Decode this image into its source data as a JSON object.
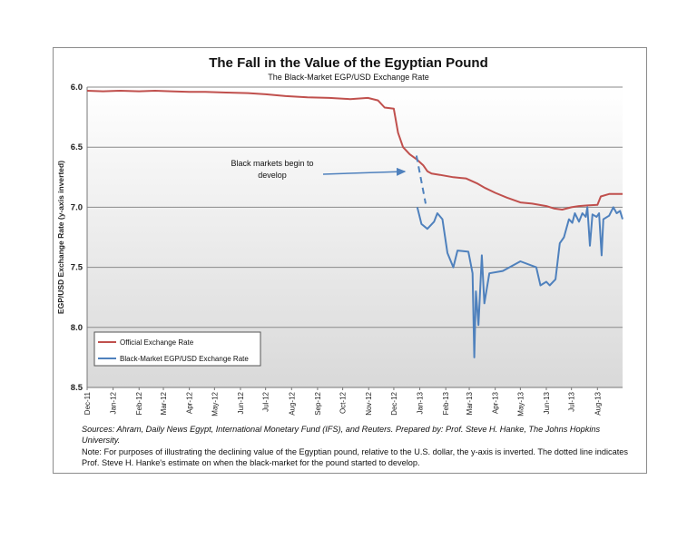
{
  "chart_data": {
    "type": "line",
    "title": "The Fall in the Value of the Egyptian Pound",
    "subtitle": "The Black-Market EGP/USD Exchange Rate",
    "ylabel": "EGP/USD Exchange Rate (y-axis inverted)",
    "xlabel": "",
    "ylim": [
      6.0,
      8.5
    ],
    "y_inverted": true,
    "y_ticks": [
      "6.0",
      "6.5",
      "7.0",
      "7.5",
      "8.0",
      "8.5"
    ],
    "x_ticks": [
      "Dec-11",
      "Jan-12",
      "Feb-12",
      "Mar-12",
      "Apr-12",
      "May-12",
      "Jun-12",
      "Jul-12",
      "Aug-12",
      "Sep-12",
      "Oct-12",
      "Nov-12",
      "Dec-12",
      "Jan-13",
      "Feb-13",
      "Mar-13",
      "Apr-13",
      "May-13",
      "Jun-13",
      "Jul-13",
      "Aug-13"
    ],
    "xlim": [
      "2011-12-01",
      "2013-08-31"
    ],
    "grid": "horizontal",
    "legend_position": "bottom-left",
    "series": [
      {
        "name": "Official Exchange Rate",
        "color": "#c0504d",
        "points": [
          [
            "2011-12-01",
            6.03
          ],
          [
            "2011-12-20",
            6.035
          ],
          [
            "2012-01-10",
            6.03
          ],
          [
            "2012-02-01",
            6.035
          ],
          [
            "2012-02-20",
            6.03
          ],
          [
            "2012-03-10",
            6.035
          ],
          [
            "2012-04-01",
            6.04
          ],
          [
            "2012-04-20",
            6.04
          ],
          [
            "2012-05-15",
            6.045
          ],
          [
            "2012-06-10",
            6.05
          ],
          [
            "2012-07-01",
            6.06
          ],
          [
            "2012-07-25",
            6.075
          ],
          [
            "2012-08-20",
            6.085
          ],
          [
            "2012-09-15",
            6.09
          ],
          [
            "2012-10-10",
            6.1
          ],
          [
            "2012-10-31",
            6.09
          ],
          [
            "2012-11-12",
            6.11
          ],
          [
            "2012-11-20",
            6.17
          ],
          [
            "2012-12-01",
            6.18
          ],
          [
            "2012-12-06",
            6.38
          ],
          [
            "2012-12-12",
            6.5
          ],
          [
            "2012-12-20",
            6.56
          ],
          [
            "2012-12-28",
            6.6
          ],
          [
            "2013-01-05",
            6.65
          ],
          [
            "2013-01-10",
            6.7
          ],
          [
            "2013-01-15",
            6.72
          ],
          [
            "2013-01-25",
            6.73
          ],
          [
            "2013-02-10",
            6.75
          ],
          [
            "2013-02-25",
            6.76
          ],
          [
            "2013-03-10",
            6.8
          ],
          [
            "2013-03-20",
            6.84
          ],
          [
            "2013-04-01",
            6.88
          ],
          [
            "2013-04-15",
            6.92
          ],
          [
            "2013-05-01",
            6.96
          ],
          [
            "2013-05-15",
            6.97
          ],
          [
            "2013-06-01",
            6.99
          ],
          [
            "2013-06-10",
            7.01
          ],
          [
            "2013-06-20",
            7.02
          ],
          [
            "2013-07-01",
            7.0
          ],
          [
            "2013-07-10",
            6.99
          ],
          [
            "2013-07-20",
            6.985
          ],
          [
            "2013-08-01",
            6.98
          ],
          [
            "2013-08-05",
            6.91
          ],
          [
            "2013-08-15",
            6.89
          ],
          [
            "2013-08-31",
            6.89
          ]
        ]
      },
      {
        "name": "Black-Market EGP/USD Exchange Rate",
        "color": "#4f81bd",
        "points": [
          [
            "2012-12-29",
            7.0
          ],
          [
            "2013-01-03",
            7.14
          ],
          [
            "2013-01-10",
            7.18
          ],
          [
            "2013-01-18",
            7.12
          ],
          [
            "2013-01-22",
            7.05
          ],
          [
            "2013-01-28",
            7.1
          ],
          [
            "2013-02-03",
            7.38
          ],
          [
            "2013-02-10",
            7.5
          ],
          [
            "2013-02-15",
            7.36
          ],
          [
            "2013-02-28",
            7.37
          ],
          [
            "2013-03-05",
            7.55
          ],
          [
            "2013-03-07",
            8.25
          ],
          [
            "2013-03-09",
            7.7
          ],
          [
            "2013-03-12",
            7.98
          ],
          [
            "2013-03-16",
            7.4
          ],
          [
            "2013-03-19",
            7.8
          ],
          [
            "2013-03-25",
            7.55
          ],
          [
            "2013-04-10",
            7.53
          ],
          [
            "2013-05-01",
            7.45
          ],
          [
            "2013-05-20",
            7.5
          ],
          [
            "2013-05-25",
            7.65
          ],
          [
            "2013-06-01",
            7.62
          ],
          [
            "2013-06-05",
            7.65
          ],
          [
            "2013-06-12",
            7.6
          ],
          [
            "2013-06-17",
            7.3
          ],
          [
            "2013-06-22",
            7.25
          ],
          [
            "2013-06-28",
            7.1
          ],
          [
            "2013-07-02",
            7.13
          ],
          [
            "2013-07-05",
            7.05
          ],
          [
            "2013-07-10",
            7.12
          ],
          [
            "2013-07-14",
            7.05
          ],
          [
            "2013-07-18",
            7.08
          ],
          [
            "2013-07-20",
            7.0
          ],
          [
            "2013-07-23",
            7.32
          ],
          [
            "2013-07-26",
            7.06
          ],
          [
            "2013-07-31",
            7.08
          ],
          [
            "2013-08-03",
            7.05
          ],
          [
            "2013-08-06",
            7.4
          ],
          [
            "2013-08-08",
            7.1
          ],
          [
            "2013-08-15",
            7.07
          ],
          [
            "2013-08-20",
            7.0
          ],
          [
            "2013-08-24",
            7.05
          ],
          [
            "2013-08-28",
            7.03
          ],
          [
            "2013-08-31",
            7.1
          ]
        ]
      },
      {
        "name": "",
        "style": "dashed",
        "color": "#4f81bd",
        "points": [
          [
            "2012-12-28",
            6.57
          ],
          [
            "2013-01-08",
            6.97
          ]
        ]
      }
    ],
    "annotations": [
      {
        "text_lines": [
          "Black markets begin to",
          "develop"
        ],
        "arrow_to": [
          "2012-12-27",
          6.68
        ]
      }
    ]
  },
  "sources": "Sources: Ahram, Daily News Egypt, International Monetary Fund  (IFS), and Reuters. Prepared by: Prof. Steve H. Hanke, The Johns Hopkins University.",
  "note": "Note: For purposes of illustrating the declining value of the Egyptian pound, relative to the U.S. dollar, the y-axis is inverted. The dotted line indicates Prof. Steve H. Hanke's estimate on when the black-market for the pound started to develop."
}
